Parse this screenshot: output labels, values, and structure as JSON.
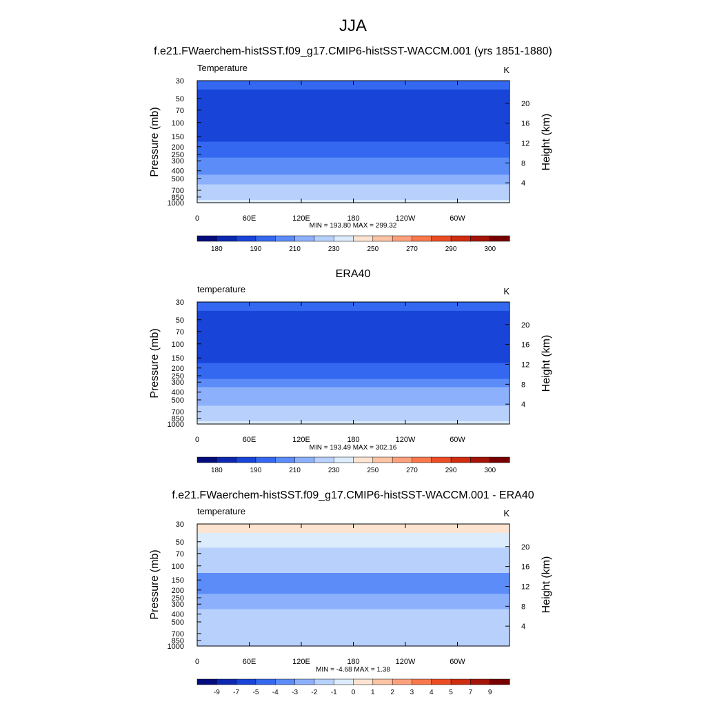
{
  "figure": {
    "title": "JJA"
  },
  "chart_data": [
    {
      "type": "heatmap",
      "title": "f.e21.FWaerchem-histSST.f09_g17.CMIP6-histSST-WACCM.001 (yrs 1851-1880)",
      "variable": "Temperature",
      "units": "K",
      "ylabel": "Pressure (mb)",
      "ylabel_right": "Height (km)",
      "x_ticks": [
        "0",
        "60E",
        "120E",
        "180",
        "120W",
        "60W"
      ],
      "y_ticks": [
        "30",
        "50",
        "70",
        "100",
        "150",
        "200",
        "250",
        "300",
        "400",
        "500",
        "700",
        "850",
        "1000"
      ],
      "y_ticks_right": [
        "20",
        "16",
        "12",
        "8",
        "4"
      ],
      "stats": "MIN = 193.80  MAX = 299.32",
      "colorbar_labels": [
        "180",
        "190",
        "210",
        "230",
        "250",
        "270",
        "290",
        "300"
      ],
      "colorbar_colors": [
        "#040c7c",
        "#0d28b0",
        "#1844d8",
        "#3468f0",
        "#5c8cf8",
        "#8cb0fc",
        "#b8d0fc",
        "#dcecfc",
        "#fce4d0",
        "#fcc4a4",
        "#fca07c",
        "#f8784c",
        "#ec4c24",
        "#d02c10",
        "#a41408",
        "#780000"
      ],
      "profile": [
        {
          "p": 30,
          "v": 213
        },
        {
          "p": 50,
          "v": 208
        },
        {
          "p": 70,
          "v": 203
        },
        {
          "p": 100,
          "v": 198
        },
        {
          "p": 150,
          "v": 205
        },
        {
          "p": 200,
          "v": 213
        },
        {
          "p": 250,
          "v": 222
        },
        {
          "p": 300,
          "v": 232
        },
        {
          "p": 400,
          "v": 249
        },
        {
          "p": 500,
          "v": 262
        },
        {
          "p": 700,
          "v": 278
        },
        {
          "p": 850,
          "v": 286
        },
        {
          "p": 1000,
          "v": 293
        }
      ]
    },
    {
      "type": "heatmap",
      "title": "ERA40",
      "variable": "temperature",
      "units": "K",
      "ylabel": "Pressure (mb)",
      "ylabel_right": "Height (km)",
      "x_ticks": [
        "0",
        "60E",
        "120E",
        "180",
        "120W",
        "60W"
      ],
      "y_ticks": [
        "30",
        "50",
        "70",
        "100",
        "150",
        "200",
        "250",
        "300",
        "400",
        "500",
        "700",
        "850",
        "1000"
      ],
      "y_ticks_right": [
        "20",
        "16",
        "12",
        "8",
        "4"
      ],
      "stats": "MIN = 193.49  MAX = 302.16",
      "colorbar_labels": [
        "180",
        "190",
        "210",
        "230",
        "250",
        "270",
        "290",
        "300"
      ],
      "colorbar_colors": [
        "#040c7c",
        "#0d28b0",
        "#1844d8",
        "#3468f0",
        "#5c8cf8",
        "#8cb0fc",
        "#b8d0fc",
        "#dcecfc",
        "#fce4d0",
        "#fcc4a4",
        "#fca07c",
        "#f8784c",
        "#ec4c24",
        "#d02c10",
        "#a41408",
        "#780000"
      ],
      "profile": [
        {
          "p": 30,
          "v": 214
        },
        {
          "p": 50,
          "v": 209
        },
        {
          "p": 70,
          "v": 204
        },
        {
          "p": 100,
          "v": 199
        },
        {
          "p": 150,
          "v": 207
        },
        {
          "p": 200,
          "v": 215
        },
        {
          "p": 250,
          "v": 224
        },
        {
          "p": 300,
          "v": 235
        },
        {
          "p": 400,
          "v": 251
        },
        {
          "p": 500,
          "v": 264
        },
        {
          "p": 700,
          "v": 279
        },
        {
          "p": 850,
          "v": 287
        },
        {
          "p": 1000,
          "v": 295
        }
      ]
    },
    {
      "type": "heatmap",
      "title": "f.e21.FWaerchem-histSST.f09_g17.CMIP6-histSST-WACCM.001 - ERA40",
      "variable": "temperature",
      "units": "K",
      "ylabel": "Pressure (mb)",
      "ylabel_right": "Height (km)",
      "x_ticks": [
        "0",
        "60E",
        "120E",
        "180",
        "120W",
        "60W"
      ],
      "y_ticks": [
        "30",
        "50",
        "70",
        "100",
        "150",
        "200",
        "250",
        "300",
        "400",
        "500",
        "700",
        "850",
        "1000"
      ],
      "y_ticks_right": [
        "20",
        "16",
        "12",
        "8",
        "4"
      ],
      "stats": "MIN =  -4.68  MAX =   1.38",
      "colorbar_labels": [
        "-9",
        "-7",
        "-5",
        "-4",
        "-3",
        "-2",
        "-1",
        "0",
        "1",
        "2",
        "3",
        "4",
        "5",
        "7",
        "9"
      ],
      "colorbar_colors": [
        "#040c7c",
        "#0d28b0",
        "#1844d8",
        "#3468f0",
        "#5c8cf8",
        "#8cb0fc",
        "#b8d0fc",
        "#dcecfc",
        "#fce4d0",
        "#fcc4a4",
        "#fca07c",
        "#f8784c",
        "#ec4c24",
        "#d02c10",
        "#a41408",
        "#780000"
      ],
      "profile": [
        {
          "p": 30,
          "v": 0.3
        },
        {
          "p": 50,
          "v": -0.4
        },
        {
          "p": 70,
          "v": -1.2
        },
        {
          "p": 100,
          "v": -1.1
        },
        {
          "p": 150,
          "v": -3.4
        },
        {
          "p": 200,
          "v": -3.2
        },
        {
          "p": 250,
          "v": -2.7
        },
        {
          "p": 300,
          "v": -2.3
        },
        {
          "p": 400,
          "v": -1.5
        },
        {
          "p": 500,
          "v": -1.4
        },
        {
          "p": 700,
          "v": -1.3
        },
        {
          "p": 850,
          "v": -1.2
        },
        {
          "p": 1000,
          "v": -1.6
        }
      ]
    }
  ]
}
